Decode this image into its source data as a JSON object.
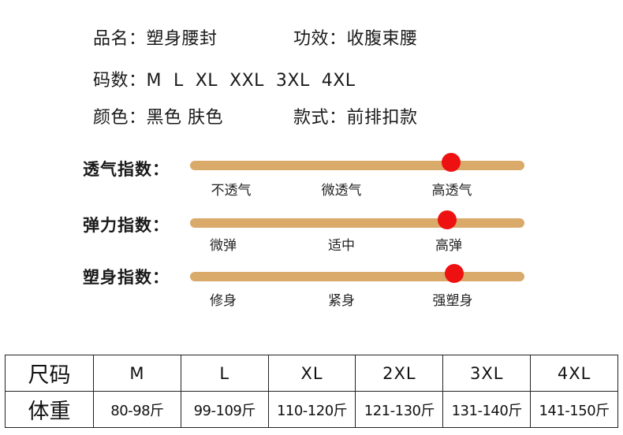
{
  "product": {
    "name_label": "品名：",
    "name_value": "塑身腰封",
    "function_label": "功效：",
    "function_value": "收腹束腰",
    "sizes_label": "码数：",
    "sizes_value": "M  L  XL  XXL  3XL  4XL",
    "color_label": "颜色：",
    "color_value": "黑色 肤色",
    "style_label": "款式：",
    "style_value": "前排扣款"
  },
  "indices": [
    {
      "label": "透气指数：",
      "ticks": [
        "不透气",
        "微透气",
        "高透气"
      ],
      "level": 0.78
    },
    {
      "label": "弹力指数：",
      "ticks": [
        "微弹",
        "适中",
        "高弹"
      ],
      "level": 0.77
    },
    {
      "label": "塑身指数：",
      "ticks": [
        "修身",
        "紧身",
        "强塑身"
      ],
      "level": 0.79
    }
  ],
  "colors": {
    "track": "#d9aa6a",
    "marker": "#ee1111",
    "text": "#1a1a1a"
  },
  "size_table": {
    "size_header": "尺码",
    "weight_header": "体重",
    "sizes": [
      "M",
      "L",
      "XL",
      "2XL",
      "3XL",
      "4XL"
    ],
    "weights": [
      "80-98斤",
      "99-109斤",
      "110-120斤",
      "121-130斤",
      "131-140斤",
      "141-150斤"
    ]
  }
}
